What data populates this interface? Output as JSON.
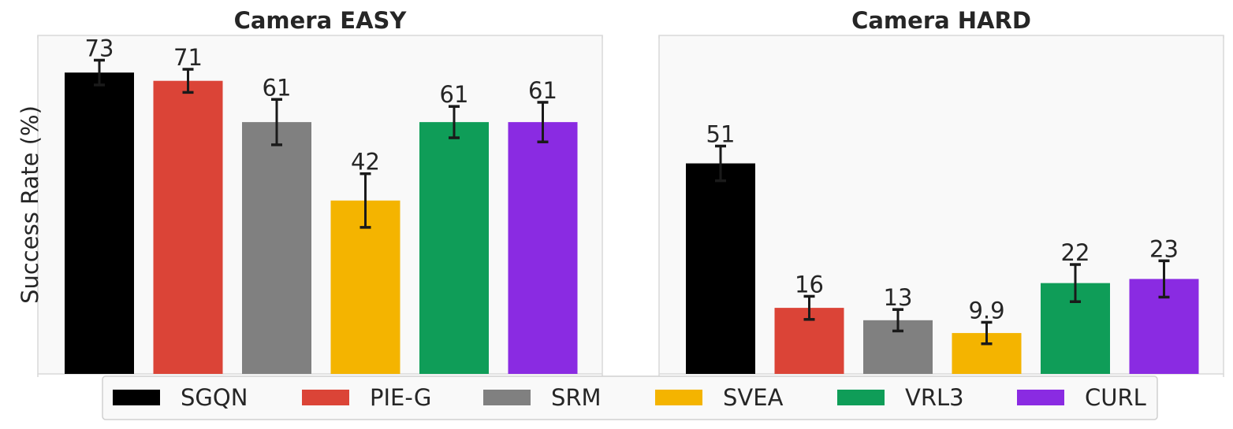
{
  "chart_data": {
    "type": "bar",
    "ylabel": "Success Rate (%)",
    "ylim": [
      0,
      82
    ],
    "grid": false,
    "legend_position": "bottom-center",
    "series": [
      {
        "name": "SGQN",
        "color": "#000000"
      },
      {
        "name": "PIE-G",
        "color": "#db4437"
      },
      {
        "name": "SRM",
        "color": "#808080"
      },
      {
        "name": "SVEA",
        "color": "#f4b400"
      },
      {
        "name": "VRL3",
        "color": "#0f9d58"
      },
      {
        "name": "CURL",
        "color": "#8a2be2"
      }
    ],
    "panels": [
      {
        "title": "Camera EASY",
        "values": [
          73,
          71,
          61,
          42,
          61,
          61
        ],
        "errors": [
          3.0,
          2.8,
          5.5,
          6.5,
          3.8,
          4.8
        ],
        "labels": [
          "73",
          "71",
          "61",
          "42",
          "61",
          "61"
        ]
      },
      {
        "title": "Camera HARD",
        "values": [
          51,
          16,
          13,
          9.9,
          22,
          23
        ],
        "errors": [
          4.2,
          2.8,
          2.6,
          2.6,
          4.5,
          4.4
        ],
        "labels": [
          "51",
          "16",
          "13",
          "9.9",
          "22",
          "23"
        ]
      }
    ]
  }
}
